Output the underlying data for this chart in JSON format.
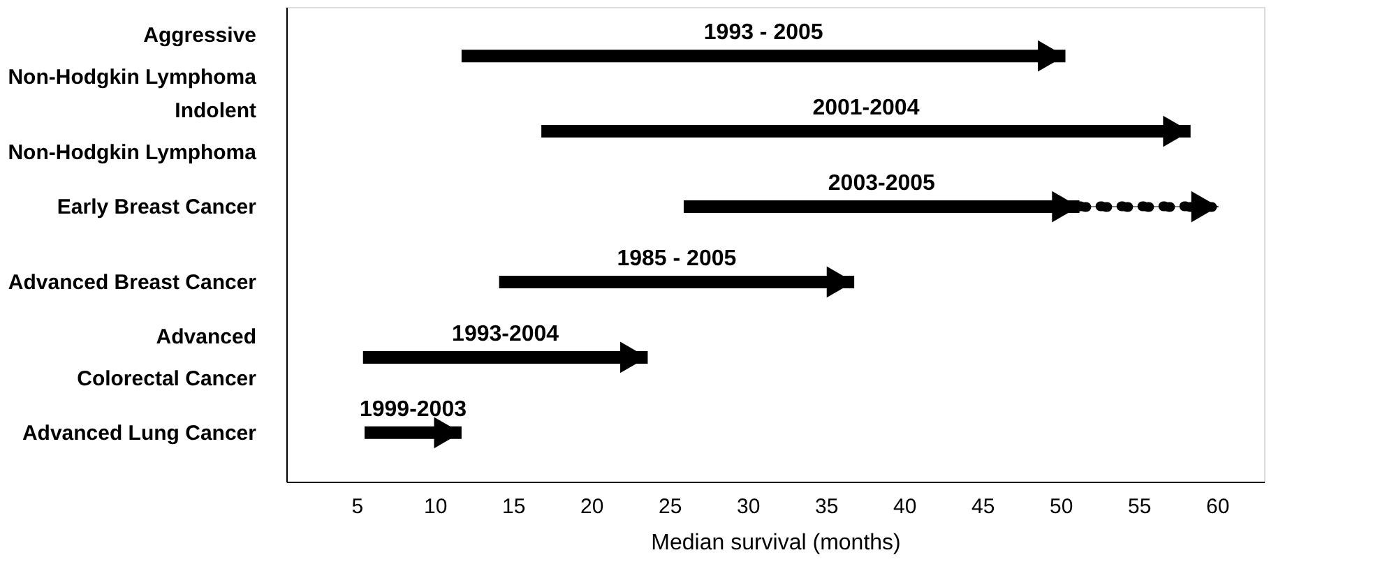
{
  "chart_data": {
    "type": "bar",
    "orientation": "horizontal",
    "xlabel": "Median survival (months)",
    "categories": [
      "Aggressive\nNon-Hodgkin Lymphoma",
      "Indolent\nNon-Hodgkin Lymphoma",
      "Early Breast Cancer",
      "Advanced Breast Cancer",
      "Advanced\nColorectal Cancer",
      "Advanced Lung Cancer"
    ],
    "series": [
      {
        "color": "#000000",
        "base": [
          11.7,
          16.8,
          25.9,
          14.1,
          5.4,
          5.5
        ],
        "values": [
          38.6,
          41.5,
          25.3,
          22.7,
          18.2,
          6.2
        ],
        "line_style": "solid"
      },
      {
        "color": "#000000",
        "base": [
          null,
          null,
          51.2,
          null,
          null,
          null
        ],
        "values": [
          null,
          null,
          8.9,
          null,
          null,
          null
        ],
        "line_style": "dotted"
      }
    ],
    "annotations": [
      "1993 - 2005",
      "2001-2004",
      "2003-2005",
      "1985 - 2005",
      "1993-2004",
      "1999-2003"
    ],
    "xlim": [
      0.5,
      63
    ],
    "xticks": [
      5,
      10,
      15,
      20,
      25,
      30,
      35,
      40,
      45,
      50,
      55,
      60
    ],
    "grid": false,
    "legend": false
  }
}
